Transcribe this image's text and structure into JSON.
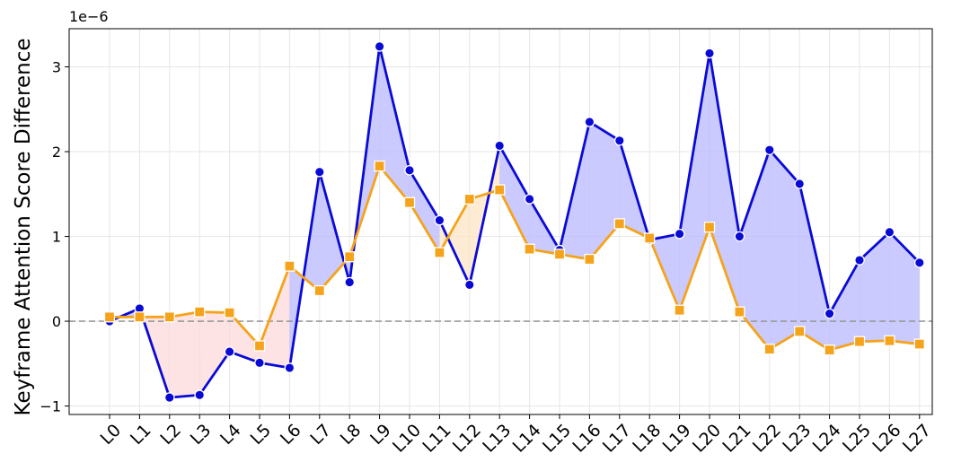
{
  "chart_data": {
    "type": "line",
    "ylabel": "Keyframe Attention Score Difference",
    "xlabel": "",
    "y_scale_label": "1e−6",
    "categories": [
      "L0",
      "L1",
      "L2",
      "L3",
      "L4",
      "L5",
      "L6",
      "L7",
      "L8",
      "L9",
      "L10",
      "L11",
      "L12",
      "L13",
      "L14",
      "L15",
      "L16",
      "L17",
      "L18",
      "L19",
      "L20",
      "L21",
      "L22",
      "L23",
      "L24",
      "L25",
      "L26",
      "L27"
    ],
    "y_ticks": [
      -1,
      0,
      1,
      2,
      3
    ],
    "ylim": [
      -1.1,
      3.45
    ],
    "grid": true,
    "zero_line": true,
    "series": [
      {
        "color": "#0a0ad6",
        "marker": "circle",
        "fill_positive": "#b8b8ff",
        "fill_negative": "#e3eff9",
        "values": [
          0.0,
          0.15,
          -0.9,
          -0.87,
          -0.36,
          -0.49,
          -0.55,
          1.76,
          0.46,
          3.24,
          1.78,
          1.19,
          0.43,
          2.07,
          1.44,
          0.84,
          2.35,
          2.13,
          0.96,
          1.03,
          3.16,
          1.0,
          2.02,
          1.62,
          0.09,
          0.72,
          1.05,
          0.69
        ]
      },
      {
        "color": "#f5a31a",
        "marker": "square",
        "fill_positive": "#fce6c4",
        "fill_negative": "#fcdada",
        "values": [
          0.05,
          0.05,
          0.05,
          0.11,
          0.1,
          -0.29,
          0.65,
          0.36,
          0.76,
          1.83,
          1.4,
          0.81,
          1.44,
          1.55,
          0.85,
          0.79,
          0.73,
          1.15,
          0.98,
          0.13,
          1.11,
          0.11,
          -0.33,
          -0.12,
          -0.34,
          -0.24,
          -0.23,
          -0.27
        ]
      }
    ]
  }
}
